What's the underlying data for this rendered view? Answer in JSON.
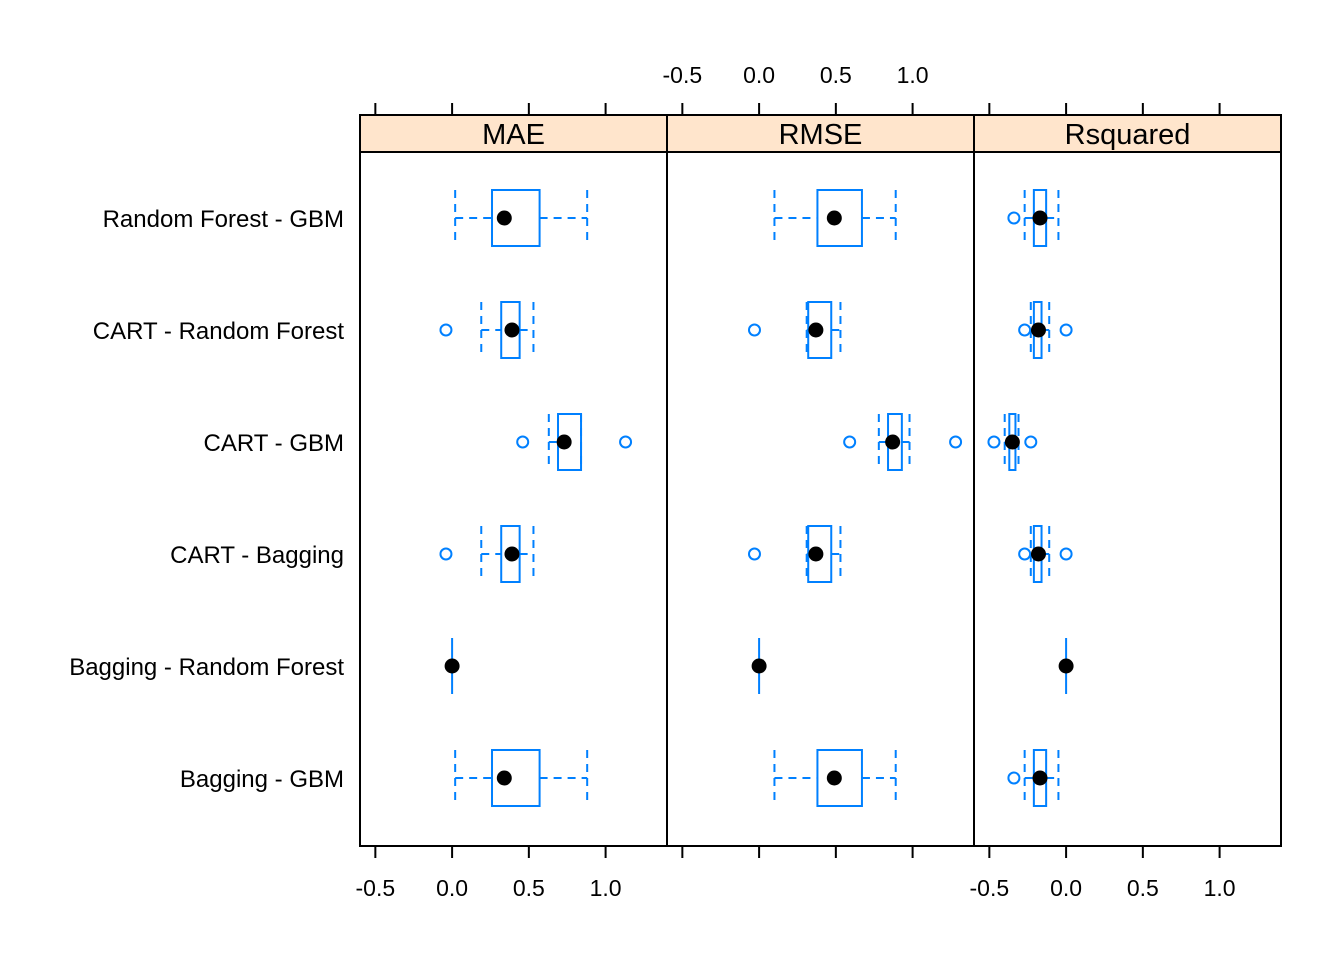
{
  "chart_data": {
    "type": "box",
    "panels": [
      "MAE",
      "RMSE",
      "Rsquared"
    ],
    "categories": [
      "Random Forest - GBM",
      "CART - Random Forest",
      "CART - GBM",
      "CART - Bagging",
      "Bagging - Random Forest",
      "Bagging - GBM"
    ],
    "xlim": [
      -0.6,
      1.4
    ],
    "ticks": [
      -0.5,
      0.0,
      0.5,
      1.0
    ],
    "tick_labels": [
      "-0.5",
      "0.0",
      "0.5",
      "1.0"
    ],
    "colors": {
      "box": "#0080ff",
      "median": "#000000",
      "strip": "#ffe5cc"
    },
    "boxes": {
      "MAE": [
        {
          "category": "Random Forest - GBM",
          "whisker_low": 0.02,
          "q1": 0.26,
          "median": 0.34,
          "q3": 0.57,
          "whisker_high": 0.88,
          "outliers": []
        },
        {
          "category": "CART - Random Forest",
          "whisker_low": 0.19,
          "q1": 0.32,
          "median": 0.39,
          "q3": 0.44,
          "whisker_high": 0.53,
          "outliers": [
            -0.04
          ]
        },
        {
          "category": "CART - GBM",
          "whisker_low": 0.63,
          "q1": 0.69,
          "median": 0.73,
          "q3": 0.84,
          "whisker_high": 0.84,
          "outliers": [
            0.46,
            1.13
          ]
        },
        {
          "category": "CART - Bagging",
          "whisker_low": 0.19,
          "q1": 0.32,
          "median": 0.39,
          "q3": 0.44,
          "whisker_high": 0.53,
          "outliers": [
            -0.04
          ]
        },
        {
          "category": "Bagging - Random Forest",
          "whisker_low": 0.0,
          "q1": 0.0,
          "median": 0.0,
          "q3": 0.0,
          "whisker_high": 0.0,
          "outliers": []
        },
        {
          "category": "Bagging - GBM",
          "whisker_low": 0.02,
          "q1": 0.26,
          "median": 0.34,
          "q3": 0.57,
          "whisker_high": 0.88,
          "outliers": []
        }
      ],
      "RMSE": [
        {
          "category": "Random Forest - GBM",
          "whisker_low": 0.1,
          "q1": 0.38,
          "median": 0.49,
          "q3": 0.67,
          "whisker_high": 0.89,
          "outliers": []
        },
        {
          "category": "CART - Random Forest",
          "whisker_low": 0.31,
          "q1": 0.32,
          "median": 0.37,
          "q3": 0.47,
          "whisker_high": 0.53,
          "outliers": [
            -0.03
          ]
        },
        {
          "category": "CART - GBM",
          "whisker_low": 0.78,
          "q1": 0.84,
          "median": 0.87,
          "q3": 0.93,
          "whisker_high": 0.98,
          "outliers": [
            0.59,
            1.28
          ]
        },
        {
          "category": "CART - Bagging",
          "whisker_low": 0.31,
          "q1": 0.32,
          "median": 0.37,
          "q3": 0.47,
          "whisker_high": 0.53,
          "outliers": [
            -0.03
          ]
        },
        {
          "category": "Bagging - Random Forest",
          "whisker_low": 0.0,
          "q1": 0.0,
          "median": 0.0,
          "q3": 0.0,
          "whisker_high": 0.0,
          "outliers": []
        },
        {
          "category": "Bagging - GBM",
          "whisker_low": 0.1,
          "q1": 0.38,
          "median": 0.49,
          "q3": 0.67,
          "whisker_high": 0.89,
          "outliers": []
        }
      ],
      "Rsquared": [
        {
          "category": "Random Forest - GBM",
          "whisker_low": -0.27,
          "q1": -0.21,
          "median": -0.17,
          "q3": -0.13,
          "whisker_high": -0.05,
          "outliers": [
            -0.34
          ]
        },
        {
          "category": "CART - Random Forest",
          "whisker_low": -0.23,
          "q1": -0.21,
          "median": -0.18,
          "q3": -0.16,
          "whisker_high": -0.11,
          "outliers": [
            -0.27,
            0.0
          ]
        },
        {
          "category": "CART - GBM",
          "whisker_low": -0.4,
          "q1": -0.37,
          "median": -0.35,
          "q3": -0.33,
          "whisker_high": -0.31,
          "outliers": [
            -0.47,
            -0.23
          ]
        },
        {
          "category": "CART - Bagging",
          "whisker_low": -0.23,
          "q1": -0.21,
          "median": -0.18,
          "q3": -0.16,
          "whisker_high": -0.11,
          "outliers": [
            -0.27,
            0.0
          ]
        },
        {
          "category": "Bagging - Random Forest",
          "whisker_low": 0.0,
          "q1": 0.0,
          "median": 0.0,
          "q3": 0.0,
          "whisker_high": 0.0,
          "outliers": []
        },
        {
          "category": "Bagging - GBM",
          "whisker_low": -0.27,
          "q1": -0.21,
          "median": -0.17,
          "q3": -0.13,
          "whisker_high": -0.05,
          "outliers": [
            -0.34
          ]
        }
      ]
    }
  }
}
